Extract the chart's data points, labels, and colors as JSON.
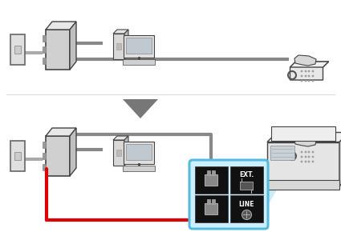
{
  "bg_color": "#ffffff",
  "cable_gray": "#888888",
  "cable_red": "#dd0000",
  "wall_color": "#e0e0e0",
  "wall_edge": "#666666",
  "device_fill": "#e8e8e8",
  "device_edge": "#444444",
  "black_fill": "#111111",
  "port_box_edge": "#55bbdd",
  "port_box_fill": "#cceeff",
  "beam_color": "#88ccee",
  "arrow_fill": "#777777",
  "text_ext": "EXT.",
  "text_line": "LINE"
}
